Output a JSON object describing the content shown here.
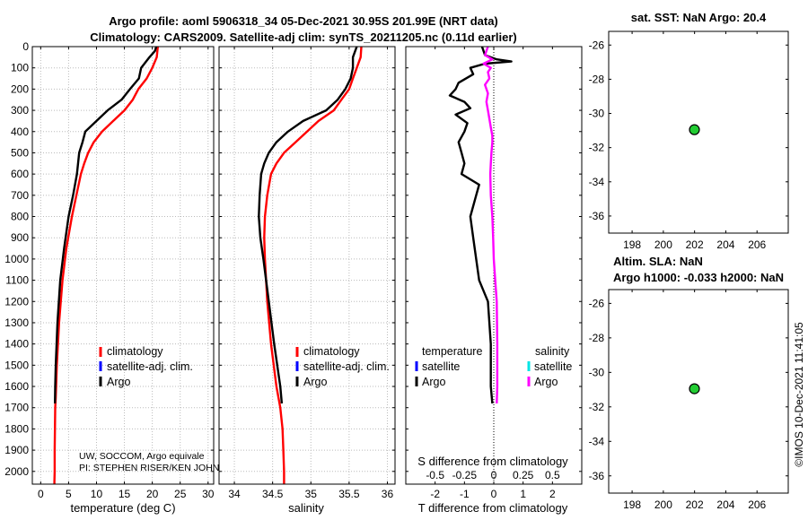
{
  "header": {
    "title_line1": "Argo profile: aoml 5906318_34 05-Dec-2021 30.95S 201.99E (NRT data)",
    "title_line2": "Climatology: CARS2009. Satellite-adj clim: synTS_20211205.nc (0.11d earlier)"
  },
  "watermark": "©IMOS 10-Dec-2021 11:41:05",
  "colors": {
    "argo": "#000000",
    "climatology": "#ff0000",
    "satellite_adj": "#0000ff",
    "salinity_diff": "#ff00ff",
    "salinity_satellite": "#00e5e5",
    "marker_fill": "#22cc33",
    "grid": "#bbbbbb"
  },
  "chart_data": [
    {
      "id": "temperature",
      "type": "line",
      "xlabel": "temperature (deg C)",
      "ylabel": "",
      "xlim": [
        -1.5,
        31
      ],
      "ylim": [
        2060,
        0
      ],
      "xticks": [
        0,
        5,
        10,
        15,
        20,
        25,
        30
      ],
      "xtick_labels": [
        "0",
        "5",
        "10",
        "15",
        "20",
        "25",
        "30"
      ],
      "yticks": [
        0,
        100,
        200,
        300,
        400,
        500,
        600,
        700,
        800,
        900,
        1000,
        1100,
        1200,
        1300,
        1400,
        1500,
        1600,
        1700,
        1800,
        1900,
        2000
      ],
      "yaxis_labels": true,
      "grid": true,
      "legend": {
        "position": "lower-middle",
        "entries": [
          "climatology",
          "satellite-adj. clim.",
          "Argo"
        ]
      },
      "annotations": [
        "UW, SOCCOM, Argo equivale",
        "PI: STEPHEN RISER/KEN JOHN"
      ],
      "series": [
        {
          "name": "climatology",
          "color": "#ff0000",
          "x": [
            21.0,
            20.8,
            20.0,
            19.0,
            17.5,
            16.5,
            15.0,
            13.0,
            11.0,
            9.5,
            8.5,
            7.8,
            7.2,
            6.4,
            5.6,
            4.6,
            3.9,
            3.3,
            2.9,
            2.7,
            2.6,
            2.55,
            2.5,
            2.5,
            2.45,
            2.45
          ],
          "y": [
            0,
            50,
            100,
            150,
            200,
            250,
            300,
            350,
            400,
            450,
            500,
            550,
            600,
            700,
            800,
            950,
            1100,
            1300,
            1500,
            1650,
            1700,
            1800,
            1900,
            2000,
            2050,
            2060
          ]
        },
        {
          "name": "Argo",
          "color": "#000000",
          "x": [
            20.7,
            20.5,
            19.5,
            18.0,
            17.6,
            16.0,
            14.5,
            12.0,
            10.0,
            8.0,
            7.5,
            6.9,
            6.5,
            5.8,
            5.0,
            4.2,
            3.5,
            3.0,
            2.7,
            2.6,
            2.55
          ],
          "y": [
            0,
            20,
            50,
            100,
            150,
            200,
            250,
            300,
            350,
            400,
            450,
            500,
            600,
            700,
            800,
            950,
            1100,
            1300,
            1500,
            1600,
            1680
          ]
        }
      ]
    },
    {
      "id": "salinity",
      "type": "line",
      "xlabel": "salinity",
      "ylabel": "",
      "xlim": [
        33.8,
        36.1
      ],
      "ylim": [
        2060,
        0
      ],
      "xticks": [
        34,
        34.5,
        35,
        35.5,
        36
      ],
      "xtick_labels": [
        "34",
        "34.5",
        "35",
        "35.5",
        "36"
      ],
      "yticks": [
        0,
        100,
        200,
        300,
        400,
        500,
        600,
        700,
        800,
        900,
        1000,
        1100,
        1200,
        1300,
        1400,
        1500,
        1600,
        1700,
        1800,
        1900,
        2000
      ],
      "yaxis_labels": false,
      "grid": true,
      "legend": {
        "position": "lower-middle",
        "entries": [
          "climatology",
          "satellite-adj. clim.",
          "Argo"
        ]
      },
      "series": [
        {
          "name": "climatology",
          "color": "#ff0000",
          "x": [
            35.66,
            35.65,
            35.6,
            35.55,
            35.5,
            35.4,
            35.3,
            35.1,
            34.95,
            34.8,
            34.65,
            34.55,
            34.48,
            34.43,
            34.4,
            34.39,
            34.4,
            34.43,
            34.48,
            34.55,
            34.6,
            34.63,
            34.64,
            34.65,
            34.65
          ],
          "y": [
            0,
            50,
            100,
            150,
            200,
            250,
            300,
            350,
            400,
            450,
            500,
            550,
            600,
            700,
            800,
            900,
            1000,
            1200,
            1400,
            1600,
            1700,
            1800,
            1900,
            2000,
            2060
          ]
        },
        {
          "name": "Argo",
          "color": "#000000",
          "x": [
            35.6,
            35.55,
            35.55,
            35.52,
            35.45,
            35.35,
            35.2,
            34.9,
            34.7,
            34.55,
            34.45,
            34.39,
            34.35,
            34.33,
            34.32,
            34.34,
            34.38,
            34.45,
            34.52,
            34.58,
            34.6,
            34.62
          ],
          "y": [
            0,
            50,
            100,
            150,
            200,
            250,
            300,
            350,
            400,
            450,
            500,
            550,
            600,
            700,
            800,
            900,
            1000,
            1200,
            1400,
            1550,
            1600,
            1680
          ]
        }
      ]
    },
    {
      "id": "difference",
      "type": "line",
      "xlabel": "T difference from climatology",
      "xlabel_top": "S difference from climatology",
      "ylabel": "",
      "xlim": [
        -3,
        3
      ],
      "ylim": [
        2060,
        0
      ],
      "xticks": [
        -2,
        -1,
        0,
        1,
        2
      ],
      "xtick_labels": [
        "-2",
        "-1",
        "0",
        "1",
        "2"
      ],
      "secondary_ticks": [
        -0.5,
        -0.25,
        0,
        0.25,
        0.5
      ],
      "secondary_tick_labels": [
        "-0.5",
        "-0.25",
        "0",
        "0.25",
        "0.5"
      ],
      "yticks": [
        0,
        100,
        200,
        300,
        400,
        500,
        600,
        700,
        800,
        900,
        1000,
        1100,
        1200,
        1300,
        1400,
        1500,
        1600,
        1700,
        1800,
        1900,
        2000
      ],
      "yaxis_labels": false,
      "grid": false,
      "zero_line": 0,
      "legend": {
        "position": "lower",
        "temperature_title": "temperature",
        "salinity_title": "salinity",
        "temperature_entries": [
          "satellite",
          "Argo"
        ],
        "salinity_entries": [
          "satellite",
          "Argo"
        ]
      },
      "series": [
        {
          "name": "temperature Argo",
          "color": "#000000",
          "x": [
            -0.4,
            -0.3,
            0.1,
            0.6,
            -0.3,
            -0.8,
            -0.7,
            -1.2,
            -1.3,
            -1.5,
            -1.0,
            -0.8,
            -1.3,
            -0.9,
            -1.0,
            -1.2,
            -1.1,
            -1.0,
            -1.1,
            -0.5,
            -0.6,
            -0.8,
            -0.7,
            -0.6,
            -0.5,
            -0.2,
            -0.1,
            -0.1,
            -0.05
          ],
          "y": [
            0,
            40,
            60,
            70,
            80,
            100,
            130,
            170,
            200,
            230,
            260,
            290,
            320,
            360,
            400,
            450,
            500,
            550,
            600,
            650,
            700,
            800,
            900,
            1000,
            1100,
            1200,
            1400,
            1600,
            1680
          ]
        },
        {
          "name": "salinity Argo",
          "color": "#ff00ff",
          "x": [
            -0.2,
            -0.3,
            -0.05,
            -0.35,
            -0.1,
            -0.2,
            -0.15,
            -0.3,
            -0.2,
            -0.25,
            -0.2,
            -0.15,
            -0.1,
            -0.05,
            -0.05,
            -0.08,
            -0.1,
            -0.12,
            -0.1,
            -0.05,
            -0.02,
            0.0,
            0.05,
            0.1,
            0.12,
            0.12,
            0.1
          ],
          "y": [
            0,
            40,
            60,
            80,
            100,
            120,
            150,
            180,
            220,
            260,
            300,
            340,
            380,
            420,
            450,
            500,
            550,
            600,
            700,
            800,
            900,
            1000,
            1100,
            1200,
            1400,
            1600,
            1680
          ]
        }
      ]
    },
    {
      "id": "sst_map",
      "type": "scatter",
      "title": "sat. SST: NaN Argo: 20.4",
      "xlim": [
        196.5,
        208
      ],
      "ylim": [
        -37,
        -25.2
      ],
      "xticks": [
        198,
        200,
        202,
        204,
        206
      ],
      "xtick_labels": [
        "198",
        "200",
        "202",
        "204",
        "206"
      ],
      "yticks": [
        -26,
        -28,
        -30,
        -32,
        -34,
        -36
      ],
      "ytick_labels": [
        "-26",
        "-28",
        "-30",
        "-32",
        "-34",
        "-36"
      ],
      "points": [
        {
          "x": 201.99,
          "y": -30.95,
          "color": "#22cc33"
        }
      ]
    },
    {
      "id": "sla_map",
      "type": "scatter",
      "title_line1": "Altim. SLA: NaN",
      "title_line2": "Argo h1000: -0.033 h2000: NaN",
      "xlim": [
        196.5,
        208
      ],
      "ylim": [
        -37,
        -25.2
      ],
      "xticks": [
        198,
        200,
        202,
        204,
        206
      ],
      "xtick_labels": [
        "198",
        "200",
        "202",
        "204",
        "206"
      ],
      "yticks": [
        -26,
        -28,
        -30,
        -32,
        -34,
        -36
      ],
      "ytick_labels": [
        "-26",
        "-28",
        "-30",
        "-32",
        "-34",
        "-36"
      ],
      "points": [
        {
          "x": 201.99,
          "y": -30.95,
          "color": "#22cc33"
        }
      ]
    }
  ]
}
